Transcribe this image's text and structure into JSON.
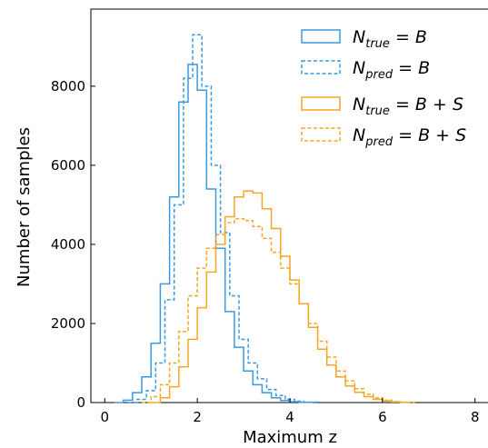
{
  "chart_data": {
    "type": "line",
    "title": "",
    "xlabel": "Maximum z",
    "ylabel": "Number of samples",
    "xlim": [
      -0.3,
      8.3
    ],
    "ylim": [
      0,
      9950
    ],
    "xticks": [
      0,
      2,
      4,
      6,
      8
    ],
    "yticks": [
      0,
      2000,
      4000,
      6000,
      8000
    ],
    "grid": false,
    "legend_position": "top-right",
    "colors": {
      "blue": "#3b99e0",
      "orange": "#f5a623"
    },
    "series": [
      {
        "name": "N_true = B",
        "legend": {
          "main": "N",
          "sub": "true",
          "rest": " = B"
        },
        "color": "#3b99e0",
        "dashed": false,
        "x": [
          0.2,
          0.4,
          0.6,
          0.8,
          1.0,
          1.2,
          1.4,
          1.6,
          1.8,
          2.0,
          2.2,
          2.4,
          2.6,
          2.8,
          3.0,
          3.2,
          3.4,
          3.6,
          3.8,
          4.0,
          4.2,
          4.5
        ],
        "y": [
          0,
          60,
          250,
          650,
          1500,
          3000,
          5200,
          7600,
          8550,
          7900,
          5400,
          3900,
          2300,
          1400,
          800,
          450,
          250,
          120,
          50,
          20,
          8,
          0
        ]
      },
      {
        "name": "N_pred = B",
        "legend": {
          "main": "N",
          "sub": "pred",
          "rest": " = B"
        },
        "color": "#3b99e0",
        "dashed": true,
        "x": [
          0.5,
          0.7,
          0.9,
          1.1,
          1.3,
          1.5,
          1.7,
          1.9,
          2.1,
          2.3,
          2.5,
          2.7,
          2.9,
          3.1,
          3.3,
          3.5,
          3.7,
          3.9,
          4.1,
          4.3,
          4.6
        ],
        "y": [
          0,
          80,
          300,
          1000,
          2600,
          5000,
          8200,
          9300,
          8000,
          6000,
          4300,
          2700,
          1600,
          1000,
          600,
          330,
          180,
          80,
          35,
          12,
          0
        ]
      },
      {
        "name": "N_true = B + S",
        "legend": {
          "main": "N",
          "sub": "true",
          "rest": " = B + S"
        },
        "color": "#f5a623",
        "dashed": false,
        "x": [
          1.0,
          1.2,
          1.4,
          1.6,
          1.8,
          2.0,
          2.2,
          2.4,
          2.6,
          2.8,
          3.0,
          3.2,
          3.4,
          3.6,
          3.8,
          4.0,
          4.2,
          4.4,
          4.6,
          4.8,
          5.0,
          5.2,
          5.4,
          5.6,
          5.8,
          6.0,
          6.2,
          6.4,
          6.6
        ],
        "y": [
          0,
          120,
          400,
          900,
          1600,
          2400,
          3300,
          4000,
          4700,
          5200,
          5350,
          5300,
          4900,
          4400,
          3700,
          3100,
          2500,
          1900,
          1350,
          950,
          650,
          420,
          260,
          150,
          80,
          40,
          15,
          5,
          0
        ]
      },
      {
        "name": "N_pred = B + S",
        "legend": {
          "main": "N",
          "sub": "pred",
          "rest": " = B + S"
        },
        "color": "#f5a623",
        "dashed": true,
        "x": [
          0.8,
          1.0,
          1.2,
          1.4,
          1.6,
          1.8,
          2.0,
          2.2,
          2.4,
          2.6,
          2.8,
          3.0,
          3.2,
          3.4,
          3.6,
          3.8,
          4.0,
          4.2,
          4.4,
          4.6,
          4.8,
          5.0,
          5.2,
          5.4,
          5.6,
          5.8,
          6.0,
          6.2,
          6.4,
          6.7
        ],
        "y": [
          0,
          150,
          450,
          1000,
          1800,
          2700,
          3400,
          3900,
          4250,
          4550,
          4650,
          4600,
          4450,
          4150,
          3800,
          3400,
          3000,
          2500,
          2000,
          1550,
          1150,
          800,
          550,
          350,
          210,
          120,
          60,
          25,
          10,
          0
        ]
      }
    ]
  }
}
